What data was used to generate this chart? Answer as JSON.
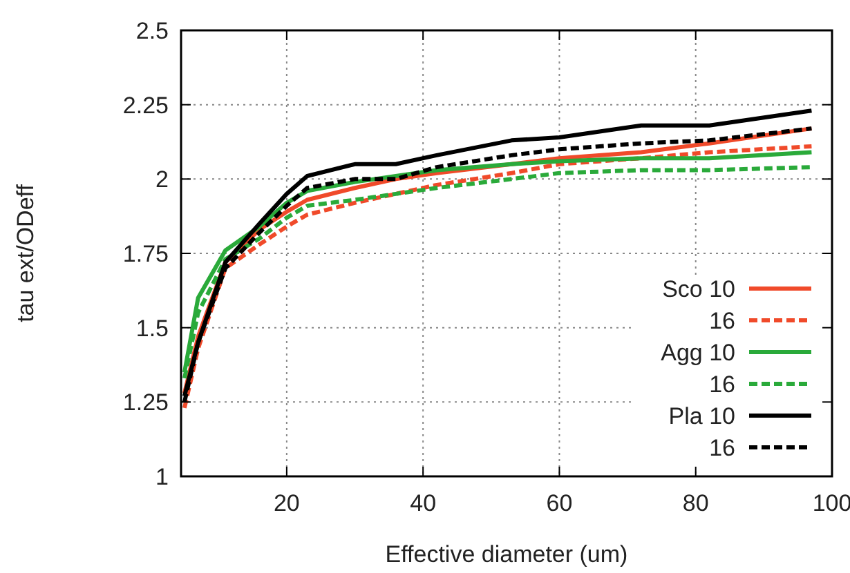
{
  "chart_data": {
    "type": "line",
    "xlabel": "Effective diameter (um)",
    "ylabel": "tau ext/ODeff",
    "x": [
      5,
      7,
      11,
      16,
      20,
      23,
      30,
      36,
      42,
      53,
      60,
      72,
      82,
      97
    ],
    "xlim": [
      4.5,
      100
    ],
    "xticks": [
      20,
      40,
      60,
      80,
      100
    ],
    "ylim": [
      1,
      2.5
    ],
    "yticks": [
      1,
      1.25,
      1.5,
      1.75,
      2,
      2.25,
      2.5
    ],
    "grid": true,
    "legend": "bottom right",
    "series": [
      {
        "name": "Sco 10",
        "color": "#f04a2a",
        "line_style": "solid",
        "values": [
          1.28,
          1.47,
          1.72,
          1.83,
          1.89,
          1.93,
          1.97,
          2.0,
          2.02,
          2.05,
          2.07,
          2.09,
          2.12,
          2.17
        ]
      },
      {
        "name": "16",
        "color": "#f04a2a",
        "line_style": "dashed",
        "values": [
          1.23,
          1.43,
          1.7,
          1.78,
          1.84,
          1.88,
          1.92,
          1.95,
          1.98,
          2.02,
          2.05,
          2.07,
          2.09,
          2.11
        ]
      },
      {
        "name": "Agg 10",
        "color": "#2aaa3a",
        "line_style": "solid",
        "values": [
          1.35,
          1.6,
          1.76,
          1.84,
          1.92,
          1.96,
          1.99,
          2.01,
          2.03,
          2.05,
          2.06,
          2.07,
          2.07,
          2.09
        ]
      },
      {
        "name": "16",
        "color": "#2aaa3a",
        "line_style": "dashed",
        "values": [
          1.33,
          1.55,
          1.73,
          1.8,
          1.87,
          1.91,
          1.93,
          1.95,
          1.97,
          2.0,
          2.02,
          2.03,
          2.03,
          2.04
        ]
      },
      {
        "name": "Pla 10",
        "color": "#000000",
        "line_style": "solid",
        "values": [
          1.27,
          1.45,
          1.72,
          1.85,
          1.95,
          2.01,
          2.05,
          2.05,
          2.08,
          2.13,
          2.14,
          2.18,
          2.18,
          2.23
        ]
      },
      {
        "name": "16",
        "color": "#000000",
        "line_style": "dashed",
        "values": [
          1.25,
          1.45,
          1.7,
          1.82,
          1.91,
          1.97,
          2.0,
          2.0,
          2.04,
          2.08,
          2.1,
          2.12,
          2.13,
          2.17
        ]
      }
    ]
  }
}
